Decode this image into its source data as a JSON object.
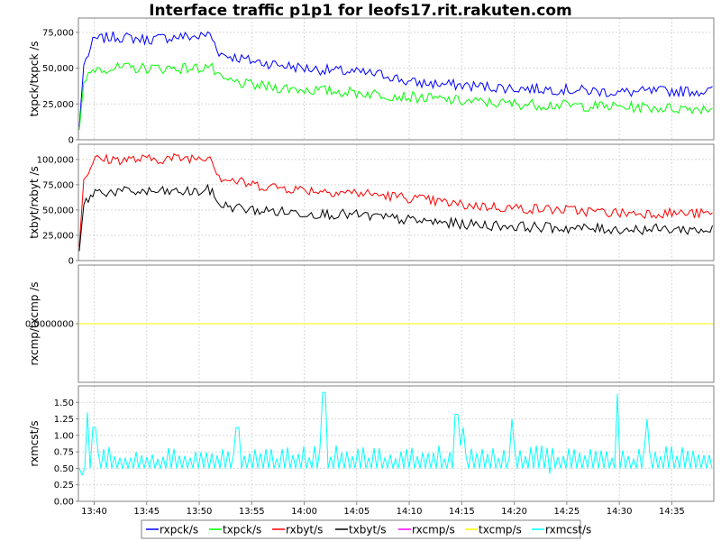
{
  "chart_data": {
    "type": "line",
    "title": "Interface traffic p1p1 for leofs17.rit.rakuten.com",
    "x": {
      "start": "13:38:30",
      "end": "14:39:00",
      "tick_labels": [
        "13:40",
        "13:45",
        "13:50",
        "13:55",
        "14:00",
        "14:05",
        "14:10",
        "14:15",
        "14:20",
        "14:25",
        "14:30",
        "14:35"
      ]
    },
    "grid": true,
    "legend_position": "bottom",
    "legend": [
      {
        "name": "rxpck/s",
        "color": "#0000ff"
      },
      {
        "name": "txpck/s",
        "color": "#00ff00"
      },
      {
        "name": "rxbyt/s",
        "color": "#ff0000"
      },
      {
        "name": "txbyt/s",
        "color": "#000000"
      },
      {
        "name": "rxcmp/s",
        "color": "#ff00ff"
      },
      {
        "name": "txcmp/s",
        "color": "#ffff00"
      },
      {
        "name": "rxmcst/s",
        "color": "#00ffff"
      }
    ],
    "panels": [
      {
        "ylabel": "txpck/txpck /s",
        "ylim": [
          0,
          85000
        ],
        "y_ticks": [
          0,
          25000,
          50000,
          75000
        ],
        "y_tick_labels": [
          "0",
          "25,000",
          "50,000",
          "75,000"
        ],
        "series": [
          {
            "name": "rxpck/s",
            "color": "#0000ff",
            "points": [
              [
                "13:38:30",
                0
              ],
              [
                "13:39:00",
                52000
              ],
              [
                "13:40:00",
                70000
              ],
              [
                "13:42:00",
                72000
              ],
              [
                "13:45:00",
                70000
              ],
              [
                "13:48:00",
                72000
              ],
              [
                "13:50:00",
                72000
              ],
              [
                "13:51:00",
                74000
              ],
              [
                "13:52:00",
                60000
              ],
              [
                "13:55:00",
                55000
              ],
              [
                "14:00:00",
                50000
              ],
              [
                "14:05:00",
                47000
              ],
              [
                "14:08:00",
                45000
              ],
              [
                "14:10:00",
                40000
              ],
              [
                "14:15:00",
                38000
              ],
              [
                "14:20:00",
                36000
              ],
              [
                "14:25:00",
                35000
              ],
              [
                "14:30:00",
                33000
              ],
              [
                "14:35:00",
                34000
              ],
              [
                "14:39:00",
                34000
              ]
            ]
          },
          {
            "name": "txpck/s",
            "color": "#00ff00",
            "points": [
              [
                "13:38:30",
                0
              ],
              [
                "13:39:00",
                40000
              ],
              [
                "13:40:00",
                50000
              ],
              [
                "13:45:00",
                50000
              ],
              [
                "13:50:00",
                50000
              ],
              [
                "13:51:00",
                52000
              ],
              [
                "13:52:00",
                42000
              ],
              [
                "13:55:00",
                38000
              ],
              [
                "14:00:00",
                35000
              ],
              [
                "14:05:00",
                33000
              ],
              [
                "14:10:00",
                30000
              ],
              [
                "14:15:00",
                27000
              ],
              [
                "14:20:00",
                25000
              ],
              [
                "14:25:00",
                24000
              ],
              [
                "14:30:00",
                23000
              ],
              [
                "14:35:00",
                22000
              ],
              [
                "14:39:00",
                22000
              ]
            ]
          }
        ]
      },
      {
        "ylabel": "txbyt/rxbyt /s",
        "ylim": [
          0,
          115000
        ],
        "y_ticks": [
          0,
          25000,
          50000,
          75000,
          100000
        ],
        "y_tick_labels": [
          "0",
          "25,000",
          "50,000",
          "75,000",
          "100,000"
        ],
        "series": [
          {
            "name": "rxbyt/s",
            "color": "#ff0000",
            "points": [
              [
                "13:38:30",
                0
              ],
              [
                "13:39:00",
                80000
              ],
              [
                "13:40:00",
                100000
              ],
              [
                "13:45:00",
                100000
              ],
              [
                "13:50:00",
                102000
              ],
              [
                "13:51:00",
                104000
              ],
              [
                "13:52:00",
                82000
              ],
              [
                "13:55:00",
                75000
              ],
              [
                "14:00:00",
                70000
              ],
              [
                "14:05:00",
                67000
              ],
              [
                "14:10:00",
                62000
              ],
              [
                "14:15:00",
                55000
              ],
              [
                "14:20:00",
                52000
              ],
              [
                "14:25:00",
                50000
              ],
              [
                "14:30:00",
                47000
              ],
              [
                "14:35:00",
                47000
              ],
              [
                "14:39:00",
                46000
              ]
            ]
          },
          {
            "name": "txbyt/s",
            "color": "#000000",
            "points": [
              [
                "13:38:30",
                0
              ],
              [
                "13:39:00",
                55000
              ],
              [
                "13:40:00",
                68000
              ],
              [
                "13:45:00",
                68000
              ],
              [
                "13:50:00",
                68000
              ],
              [
                "13:51:00",
                70000
              ],
              [
                "13:52:00",
                55000
              ],
              [
                "13:55:00",
                50000
              ],
              [
                "14:00:00",
                47000
              ],
              [
                "14:05:00",
                45000
              ],
              [
                "14:10:00",
                40000
              ],
              [
                "14:15:00",
                36000
              ],
              [
                "14:20:00",
                34000
              ],
              [
                "14:25:00",
                32000
              ],
              [
                "14:30:00",
                31000
              ],
              [
                "14:35:00",
                31000
              ],
              [
                "14:39:00",
                30000
              ]
            ]
          }
        ]
      },
      {
        "ylabel": "rxcmp/txcmp /s",
        "ylim": [
          -1,
          1
        ],
        "y_ticks": [
          0
        ],
        "y_tick_labels": [
          "0.0000000"
        ],
        "series": [
          {
            "name": "rxcmp/s",
            "color": "#ff00ff",
            "points": [
              [
                "13:38:30",
                0
              ],
              [
                "14:39:00",
                0
              ]
            ]
          },
          {
            "name": "txcmp/s",
            "color": "#ffff00",
            "points": [
              [
                "13:38:30",
                0
              ],
              [
                "14:39:00",
                0
              ]
            ]
          }
        ]
      },
      {
        "ylabel": "rxmcst/s",
        "ylim": [
          0,
          1.75
        ],
        "y_ticks": [
          0,
          0.25,
          0.5,
          0.75,
          1.0,
          1.25,
          1.5
        ],
        "y_tick_labels": [
          "0.00",
          "0.25",
          "0.50",
          "0.75",
          "1.00",
          "1.25",
          "1.50"
        ],
        "series": [
          {
            "name": "rxmcst/s",
            "color": "#00ffff",
            "range": [
              0.5,
              0.85
            ],
            "spikes": [
              [
                "13:38:50",
                0.4
              ],
              [
                "13:39:20",
                1.35
              ],
              [
                "13:40:00",
                1.12
              ],
              [
                "13:53:40",
                1.12
              ],
              [
                "14:01:50",
                1.65
              ],
              [
                "14:14:30",
                1.32
              ],
              [
                "14:15:10",
                1.12
              ],
              [
                "14:19:50",
                1.25
              ],
              [
                "14:23:20",
                0.42
              ],
              [
                "14:29:50",
                1.63
              ],
              [
                "14:32:40",
                1.25
              ]
            ]
          }
        ]
      }
    ]
  }
}
